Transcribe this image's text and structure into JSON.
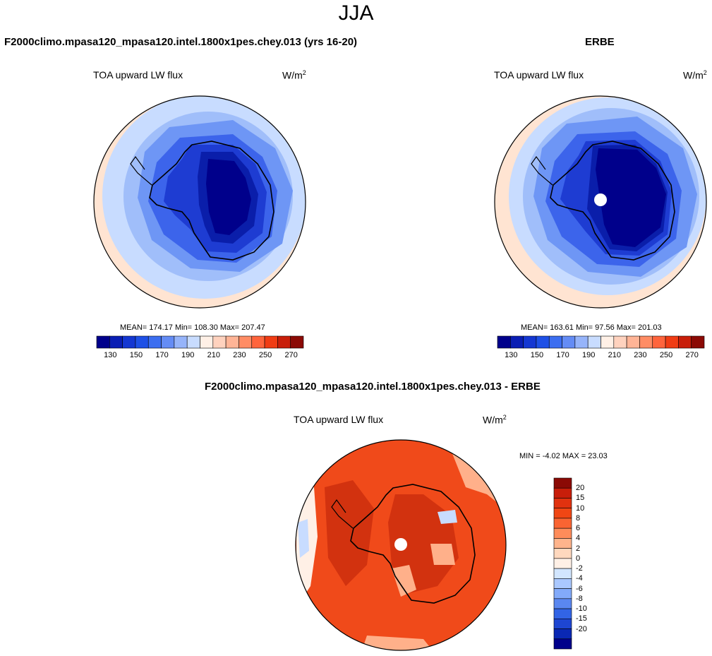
{
  "page_title": "JJA",
  "panel_left": {
    "case_title": "F2000climo.mpasa120_mpasa120.intel.1800x1pes.chey.013 (yrs 16-20)",
    "variable": "TOA upward LW flux",
    "units_base": "W/m",
    "units_exp": "2",
    "stats": "MEAN= 174.17  Min= 108.30  Max= 207.47"
  },
  "panel_right": {
    "case_title": "ERBE",
    "variable": "TOA upward LW flux",
    "units_base": "W/m",
    "units_exp": "2",
    "stats": "MEAN= 163.61  Min=  97.56  Max= 201.03"
  },
  "panel_diff": {
    "case_title": "F2000climo.mpasa120_mpasa120.intel.1800x1pes.chey.013 - ERBE",
    "variable": "TOA upward LW flux",
    "units_base": "W/m",
    "units_exp": "2",
    "stats": "MIN =  -4.02 MAX =  23.03"
  },
  "colorbar_main": {
    "colors": [
      "#00008B",
      "#0A1EB4",
      "#1437D2",
      "#1E50E6",
      "#3C6EF0",
      "#648CF5",
      "#96B4FA",
      "#C8DCFF",
      "#FFF0E6",
      "#FFD2BE",
      "#FFB496",
      "#FF8C64",
      "#FF643C",
      "#F03C14",
      "#C81E0A",
      "#8B0A05"
    ],
    "tick_labels": [
      "130",
      "150",
      "170",
      "190",
      "210",
      "230",
      "250",
      "270"
    ]
  },
  "colorbar_diff": {
    "colors": [
      "#8B0A05",
      "#C81E0A",
      "#E1320F",
      "#F04614",
      "#FA6432",
      "#FF8C5A",
      "#FFB48C",
      "#FFD8BE",
      "#FFF0E6",
      "#D2E6FF",
      "#AAC8FF",
      "#82AAFA",
      "#5A87F0",
      "#3264E6",
      "#1E46D2",
      "#0A28B4",
      "#00008B"
    ],
    "tick_labels": [
      "20",
      "15",
      "10",
      "8",
      "6",
      "4",
      "2",
      "0",
      "-2",
      "-4",
      "-6",
      "-8",
      "-10",
      "-15",
      "-20"
    ]
  },
  "map_colors": {
    "ocean_far": "#FFE4D2",
    "ring1": "#C8DCFF",
    "ring2": "#A0BEFA",
    "ring3": "#6E96F5",
    "ring4": "#3C64EB",
    "ring5": "#1E3CD2",
    "ring6": "#0A1EAA",
    "core": "#00008B",
    "diff_base": "#F04A1A",
    "diff_dark": "#D2320F",
    "diff_light": "#FFB08A",
    "diff_pale": "#FFF0E6",
    "diff_blue": "#C8DCFF"
  }
}
